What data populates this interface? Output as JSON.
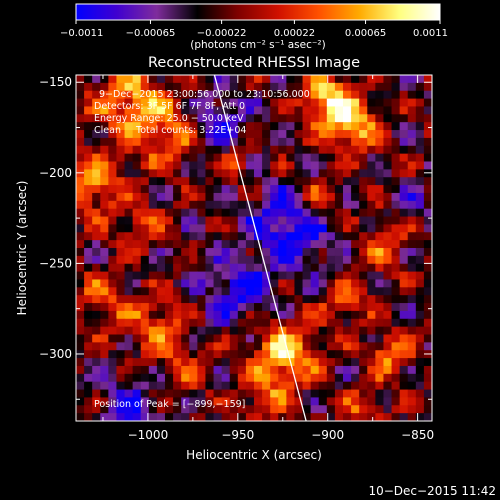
{
  "chart_data": {
    "type": "heatmap",
    "title": "Reconstructed RHESSI Image",
    "xlabel": "Heliocentric X (arcsec)",
    "ylabel": "Heliocentric Y (arcsec)",
    "xlim": [
      -1040,
      -842
    ],
    "ylim": [
      -337,
      -146
    ],
    "x_ticks": [
      -1000,
      -950,
      -900,
      -850
    ],
    "x_tick_labels": [
      "−1000",
      "−950",
      "−900",
      "−850"
    ],
    "y_ticks": [
      -150,
      -200,
      -250,
      -300
    ],
    "y_tick_labels": [
      "−150",
      "−200",
      "−250",
      "−300"
    ],
    "colorbar": {
      "min": -0.0011,
      "max": 0.0011,
      "ticks": [
        -0.0011,
        -0.00065,
        -0.00022,
        0.00022,
        0.00065,
        0.0011
      ],
      "tick_labels": [
        "−0.0011",
        "−0.00065",
        "−0.00022",
        "0.00022",
        "0.00065",
        "0.0011"
      ],
      "label": "(photons cm⁻² s⁻¹ asec⁻²)",
      "colors": [
        "#0000ff",
        "#3f00d0",
        "#7f2c9c",
        "#000000",
        "#7f0000",
        "#d01000",
        "#ff5000",
        "#ffaa00",
        "#ffff80",
        "#ffffff"
      ]
    },
    "annotations": [
      "9−Dec−2015 23:00:56.000 to 23:10:56.000",
      "Detectors: 3F 5F 6F 7F 8F, Att 0",
      "Energy Range: 25.0 − 50.0 keV",
      "Clean     Total counts: 3.22E+04"
    ],
    "peak_label": "Position of Peak = [−899,−159]",
    "peak_position": [
      -899,
      -159
    ],
    "limb_line": [
      [
        -963,
        -146
      ],
      [
        -912,
        -337
      ]
    ],
    "hotspots": [
      {
        "x": -1010,
        "y": -160,
        "r": 20,
        "v": 0.00085
      },
      {
        "x": -990,
        "y": -180,
        "r": 18,
        "v": 0.0006
      },
      {
        "x": -1030,
        "y": -205,
        "r": 16,
        "v": 0.0008
      },
      {
        "x": -1005,
        "y": -230,
        "r": 14,
        "v": 0.0005
      },
      {
        "x": -1025,
        "y": -270,
        "r": 15,
        "v": 0.00055
      },
      {
        "x": -995,
        "y": -285,
        "r": 16,
        "v": 0.00065
      },
      {
        "x": -980,
        "y": -310,
        "r": 14,
        "v": 0.0004
      },
      {
        "x": -925,
        "y": -300,
        "r": 18,
        "v": 0.001
      },
      {
        "x": -935,
        "y": -325,
        "r": 12,
        "v": 0.0006
      },
      {
        "x": -900,
        "y": -160,
        "r": 14,
        "v": 0.0011
      },
      {
        "x": -885,
        "y": -175,
        "r": 14,
        "v": 0.0009
      },
      {
        "x": -905,
        "y": -215,
        "r": 12,
        "v": 0.0007
      },
      {
        "x": -870,
        "y": -240,
        "r": 14,
        "v": 0.0005
      },
      {
        "x": -890,
        "y": -270,
        "r": 12,
        "v": 0.0006
      },
      {
        "x": -865,
        "y": -300,
        "r": 12,
        "v": 0.0008
      },
      {
        "x": -880,
        "y": -330,
        "r": 12,
        "v": 0.0005
      },
      {
        "x": -950,
        "y": -195,
        "r": 10,
        "v": 0.0004
      }
    ],
    "coldspots": [
      {
        "x": -920,
        "y": -230,
        "r": 22,
        "v": -0.0009
      },
      {
        "x": -950,
        "y": -265,
        "r": 18,
        "v": -0.0007
      },
      {
        "x": -1010,
        "y": -330,
        "r": 16,
        "v": -0.0006
      },
      {
        "x": -960,
        "y": -170,
        "r": 14,
        "v": -0.0006
      },
      {
        "x": -850,
        "y": -215,
        "r": 10,
        "v": -0.0004
      }
    ]
  },
  "footer": {
    "timestamp": "10−Dec−2015 11:42"
  }
}
